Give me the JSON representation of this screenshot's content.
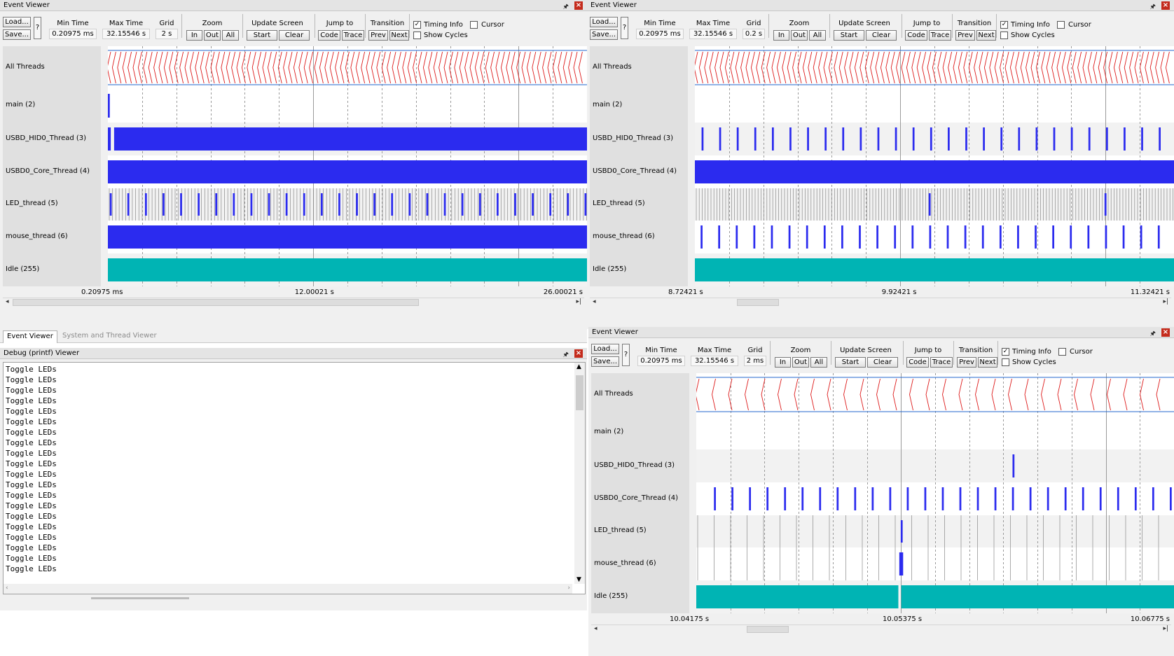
{
  "colors": {
    "bar": "#2b2bef",
    "idle": "#00b4b4",
    "alltrace": "#dd1c1c",
    "allframe": "#2266cc",
    "grid": "#9a9a9a"
  },
  "toolbar": {
    "load": "Load...",
    "save": "Save...",
    "help": "?",
    "min_time_label": "Min Time",
    "max_time_label": "Max Time",
    "grid_label": "Grid",
    "zoom_label": "Zoom",
    "zoom_in": "In",
    "zoom_out": "Out",
    "zoom_all": "All",
    "update_label": "Update Screen",
    "update_start": "Start",
    "update_clear": "Clear",
    "jump_label": "Jump to",
    "jump_code": "Code",
    "jump_trace": "Trace",
    "trans_label": "Transition",
    "trans_prev": "Prev",
    "trans_next": "Next",
    "timing_info": "Timing Info",
    "cursor": "Cursor",
    "show_cycles": "Show Cycles"
  },
  "rows": [
    "All Threads",
    "main (2)",
    "USBD_HID0_Thread (3)",
    "USBD0_Core_Thread (4)",
    "LED_thread (5)",
    "mouse_thread (6)",
    "Idle (255)"
  ],
  "viewers": [
    {
      "title": "Event Viewer",
      "min_time": "0.20975 ms",
      "max_time": "32.15546 s",
      "grid": "2 s",
      "timing_info": true,
      "cursor": false,
      "show_cycles": false,
      "axis": [
        "0.20975 ms",
        "12.00021 s",
        "26.00021 s"
      ],
      "threads": {
        "main": {
          "mode": "segments",
          "segs": [
            [
              0,
              0.004
            ]
          ]
        },
        "hid": {
          "mode": "segments",
          "segs": [
            [
              0,
              0.006
            ],
            [
              0.013,
              1
            ]
          ]
        },
        "core": {
          "mode": "segments",
          "segs": [
            [
              0,
              1
            ]
          ]
        },
        "led": {
          "mode": "periodic",
          "period": 0.0367,
          "offset": 0.004,
          "width": 0.004,
          "dense": true
        },
        "mouse": {
          "mode": "segments",
          "segs": [
            [
              0,
              1
            ]
          ]
        },
        "idle": {
          "mode": "idle",
          "segs": [
            [
              0,
              1
            ]
          ]
        }
      }
    },
    {
      "title": "Event Viewer",
      "min_time": "0.20975 ms",
      "max_time": "32.15546 s",
      "grid": "0.2 s",
      "timing_info": true,
      "cursor": false,
      "show_cycles": false,
      "axis": [
        "8.72421 s",
        "9.92421 s",
        "11.32421 s"
      ],
      "threads": {
        "main": {
          "mode": "none",
          "segs": []
        },
        "hid": {
          "mode": "periodic",
          "period": 0.0367,
          "offset": 0.014,
          "width": 0.004,
          "dense": false
        },
        "core": {
          "mode": "segments",
          "segs": [
            [
              0,
              1
            ]
          ]
        },
        "led": {
          "mode": "pulses",
          "at": [
            0.488,
            0.855
          ],
          "width": 0.004,
          "dense": true
        },
        "mouse": {
          "mode": "periodic",
          "period": 0.0367,
          "offset": 0.012,
          "width": 0.004,
          "dense": false
        },
        "idle": {
          "mode": "idle",
          "segs": [
            [
              0,
              1
            ]
          ]
        }
      }
    },
    {
      "title": "Event Viewer",
      "min_time": "0.20975 ms",
      "max_time": "32.15546 s",
      "grid": "2 ms",
      "timing_info": true,
      "cursor": false,
      "show_cycles": false,
      "axis": [
        "10.04175 s",
        "10.05375 s",
        "10.06775 s"
      ],
      "threads": {
        "main": {
          "mode": "none",
          "segs": []
        },
        "hid": {
          "mode": "pulses",
          "at": [
            0.662
          ],
          "width": 0.004,
          "dense": false
        },
        "core": {
          "mode": "periodic",
          "period": 0.0367,
          "offset": 0.037,
          "width": 0.004,
          "dense": false
        },
        "led": {
          "mode": "pulses",
          "at": [
            0.428
          ],
          "width": 0.004,
          "dense": true
        },
        "mouse": {
          "mode": "pulses",
          "at": [
            0.425
          ],
          "width": 0.008,
          "dense": true
        },
        "idle": {
          "mode": "idle",
          "segs": [
            [
              0,
              0.423
            ],
            [
              0.429,
              1
            ]
          ]
        }
      }
    }
  ],
  "bottom_tabs": [
    "Event Viewer",
    "System and Thread Viewer"
  ],
  "debug": {
    "title": "Debug (printf) Viewer",
    "lines": [
      "Toggle LEDs",
      "Toggle LEDs",
      "Toggle LEDs",
      "Toggle LEDs",
      "Toggle LEDs",
      "Toggle LEDs",
      "Toggle LEDs",
      "Toggle LEDs",
      "Toggle LEDs",
      "Toggle LEDs",
      "Toggle LEDs",
      "Toggle LEDs",
      "Toggle LEDs",
      "Toggle LEDs",
      "Toggle LEDs",
      "Toggle LEDs",
      "Toggle LEDs",
      "Toggle LEDs",
      "Toggle LEDs",
      "Toggle LEDs"
    ]
  }
}
